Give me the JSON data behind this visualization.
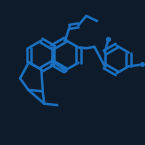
{
  "background_color": "#0d1b2a",
  "line_color": "#1a6fbf",
  "line_width": 1.8,
  "figsize": [
    1.45,
    1.45
  ],
  "dpi": 100,
  "xlim": [
    0,
    10
  ],
  "ylim": [
    0,
    10
  ]
}
